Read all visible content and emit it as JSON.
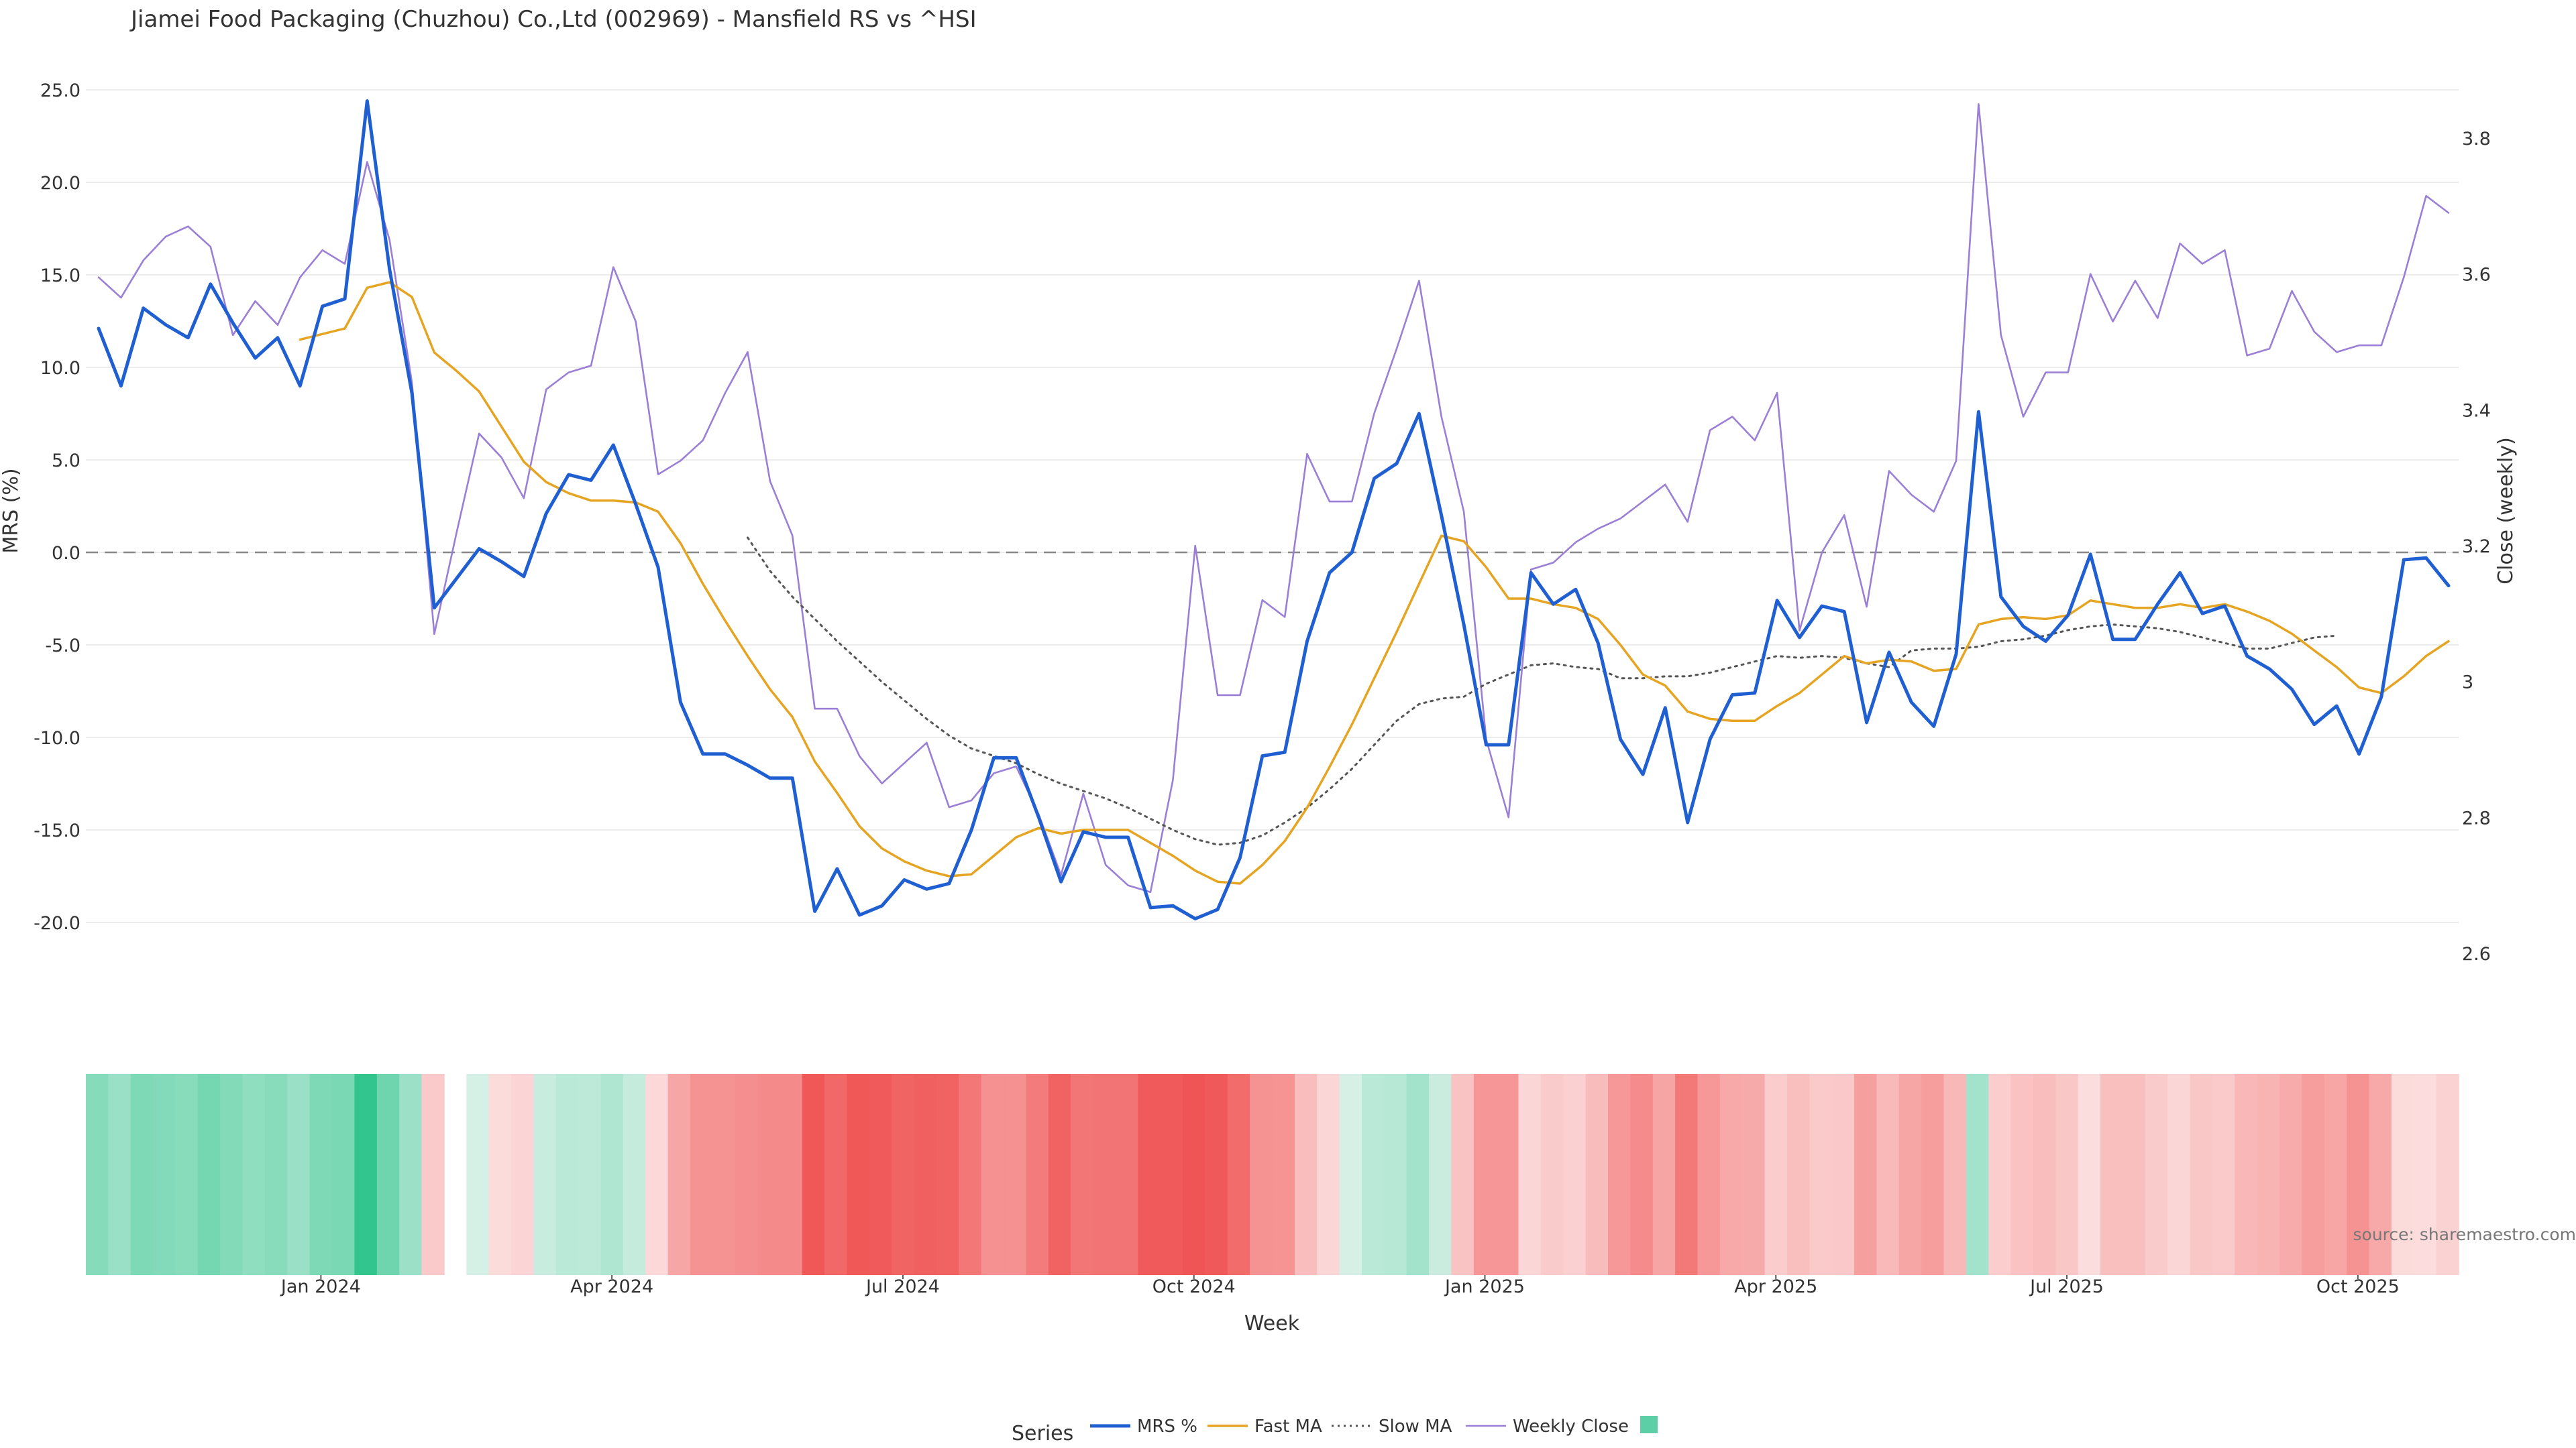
{
  "chart_data": {
    "type": "line",
    "title": "Jiamei Food Packaging (Chuzhou) Co.,Ltd (002969) - Mansfield RS vs ^HSI",
    "xlabel": "Week",
    "ylabel_left": "MRS (%)",
    "ylabel_right": "Close (weekly)",
    "ylim_left": [
      -21.5,
      25.5
    ],
    "ylim_right": [
      2.6,
      3.87
    ],
    "yticks_left": [
      "25.0",
      "20.0",
      "15.0",
      "10.0",
      "5.0",
      "0.0",
      "-5.0",
      "-10.0",
      "-15.0",
      "-20.0"
    ],
    "yticks_right": [
      "3.8",
      "3.6",
      "3.4",
      "3.2",
      "3",
      "2.8",
      "2.6"
    ],
    "xticks": [
      "Jan 2024",
      "Apr 2024",
      "Jul 2024",
      "Oct 2024",
      "Jan 2025",
      "Apr 2025",
      "Jul 2025",
      "Oct 2025"
    ],
    "zero_line": 0,
    "week_count": 106,
    "gap_weeks": [
      16
    ],
    "series": [
      {
        "name": "MRS %",
        "color": "#1f5fd1",
        "style": "solid",
        "axis": "left",
        "values": [
          12.1,
          9.0,
          13.2,
          12.3,
          11.6,
          14.5,
          12.4,
          10.5,
          11.6,
          9.0,
          13.3,
          13.7,
          24.4,
          15.3,
          8.6,
          -3.0,
          -1.4,
          0.2,
          -0.5,
          -1.3,
          2.1,
          4.2,
          3.9,
          5.8,
          2.6,
          -0.8,
          -8.1,
          -10.9,
          -10.9,
          -11.5,
          -12.2,
          -12.2,
          -19.4,
          -17.1,
          -19.6,
          -19.1,
          -17.7,
          -18.2,
          -17.9,
          -15.0,
          -11.1,
          -11.1,
          -14.3,
          -17.8,
          -15.1,
          -15.4,
          -15.4,
          -19.2,
          -19.1,
          -19.8,
          -19.3,
          -16.5,
          -11.0,
          -10.8,
          -4.8,
          -1.1,
          0.0,
          4.0,
          4.8,
          7.5,
          2.0,
          -3.9,
          -10.4,
          -10.4,
          -1.1,
          -2.8,
          -2.0,
          -4.9,
          -10.1,
          -12.0,
          -8.4,
          -14.6,
          -10.1,
          -7.7,
          -7.6,
          -2.6,
          -4.6,
          -2.9,
          -3.2,
          -9.2,
          -5.4,
          -8.1,
          -9.4,
          -5.5,
          7.6,
          -2.4,
          -4.0,
          -4.8,
          -3.4,
          -0.1,
          -4.7,
          -4.7,
          -2.8,
          -1.1,
          -3.3,
          -2.9,
          -5.6,
          -6.3,
          -7.4,
          -9.3,
          -8.3,
          -10.9,
          -7.8,
          -0.4,
          -0.3,
          -1.8
        ]
      },
      {
        "name": "Fast MA",
        "color": "#e5a421",
        "style": "solid",
        "axis": "left",
        "values": [
          null,
          null,
          null,
          null,
          null,
          null,
          null,
          null,
          null,
          11.5,
          11.8,
          12.1,
          14.3,
          14.6,
          13.8,
          10.8,
          9.8,
          8.7,
          6.8,
          4.9,
          3.8,
          3.2,
          2.8,
          2.8,
          2.7,
          2.2,
          0.5,
          -1.7,
          -3.7,
          -5.6,
          -7.4,
          -8.9,
          -11.3,
          -13.0,
          -14.8,
          -16.0,
          -16.7,
          -17.2,
          -17.5,
          -17.4,
          -16.4,
          -15.4,
          -14.9,
          -15.2,
          -15.0,
          -15.0,
          -15.0,
          -15.7,
          -16.4,
          -17.2,
          -17.8,
          -17.9,
          -16.9,
          -15.6,
          -13.8,
          -11.6,
          -9.3,
          -6.8,
          -4.3,
          -1.7,
          0.9,
          0.6,
          -0.8,
          -2.5,
          -2.5,
          -2.8,
          -3.0,
          -3.6,
          -5.0,
          -6.6,
          -7.2,
          -8.6,
          -9.0,
          -9.1,
          -9.1,
          -8.3,
          -7.6,
          -6.6,
          -5.6,
          -6.0,
          -5.8,
          -5.9,
          -6.4,
          -6.3,
          -3.9,
          -3.6,
          -3.5,
          -3.6,
          -3.4,
          -2.6,
          -2.8,
          -3.0,
          -3.0,
          -2.8,
          -3.0,
          -2.8,
          -3.2,
          -3.7,
          -4.4,
          -5.3,
          -6.2,
          -7.3,
          -7.6,
          -6.7,
          -5.6,
          -4.8
        ]
      },
      {
        "name": "Slow MA",
        "color": "#555555",
        "style": "dotted",
        "axis": "left",
        "values": [
          null,
          null,
          null,
          null,
          null,
          null,
          null,
          null,
          null,
          null,
          null,
          null,
          null,
          null,
          null,
          null,
          null,
          null,
          null,
          null,
          null,
          null,
          null,
          null,
          null,
          null,
          null,
          null,
          null,
          0.8,
          -1.0,
          -2.4,
          -3.6,
          -4.8,
          -5.9,
          -7.0,
          -8.0,
          -9.0,
          -9.9,
          -10.6,
          -11.0,
          -11.4,
          -12.0,
          -12.5,
          -12.9,
          -13.3,
          -13.8,
          -14.4,
          -15.0,
          -15.5,
          -15.8,
          -15.7,
          -15.3,
          -14.6,
          -13.8,
          -12.8,
          -11.7,
          -10.4,
          -9.1,
          -8.2,
          -7.9,
          -7.8,
          -7.1,
          -6.6,
          -6.1,
          -6.0,
          -6.2,
          -6.3,
          -6.8,
          -6.8,
          -6.7,
          -6.7,
          -6.5,
          -6.2,
          -5.9,
          -5.6,
          -5.7,
          -5.6,
          -5.7,
          -6.0,
          -6.2,
          -5.3,
          -5.2,
          -5.2,
          -5.1,
          -4.8,
          -4.7,
          -4.5,
          -4.2,
          -4.0,
          -3.9,
          -4.0,
          -4.1,
          -4.3,
          -4.6,
          -4.9,
          -5.2,
          -5.2,
          -4.9,
          -4.6,
          -4.5
        ]
      },
      {
        "name": "Weekly Close",
        "color": "#9b7fd6",
        "style": "solid",
        "axis": "right",
        "values": [
          3.595,
          3.565,
          3.62,
          3.655,
          3.67,
          3.64,
          3.51,
          3.56,
          3.525,
          3.595,
          3.635,
          3.615,
          3.765,
          3.65,
          3.44,
          3.07,
          3.22,
          3.365,
          3.33,
          3.27,
          3.43,
          3.455,
          3.465,
          3.61,
          3.53,
          3.305,
          3.325,
          3.355,
          3.425,
          3.485,
          3.295,
          3.215,
          2.96,
          2.96,
          2.89,
          2.85,
          2.88,
          2.91,
          2.815,
          2.825,
          2.865,
          2.875,
          2.805,
          2.715,
          2.835,
          2.73,
          2.7,
          2.69,
          2.855,
          3.2,
          2.98,
          2.98,
          3.12,
          3.095,
          3.335,
          3.265,
          3.265,
          3.395,
          3.49,
          3.59,
          3.39,
          3.25,
          2.915,
          2.8,
          3.165,
          3.175,
          3.205,
          3.225,
          3.24,
          3.265,
          3.29,
          3.235,
          3.37,
          3.39,
          3.355,
          3.425,
          3.075,
          3.19,
          3.245,
          3.11,
          3.31,
          3.275,
          3.25,
          3.325,
          3.85,
          3.51,
          3.39,
          3.455,
          3.455,
          3.6,
          3.53,
          3.59,
          3.535,
          3.645,
          3.615,
          3.635,
          3.48,
          3.49,
          3.575,
          3.515,
          3.485,
          3.495,
          3.495,
          3.595,
          3.715,
          3.69
        ]
      }
    ],
    "heatmap": {
      "description_free": true,
      "values_from": "MRS %"
    },
    "legend": {
      "title": "Series",
      "placement": "bottom-center",
      "entries": [
        "MRS %",
        "Fast MA",
        "Slow MA",
        "Weekly Close",
        ""
      ]
    },
    "source_note": "source: sharemaestro.com"
  }
}
